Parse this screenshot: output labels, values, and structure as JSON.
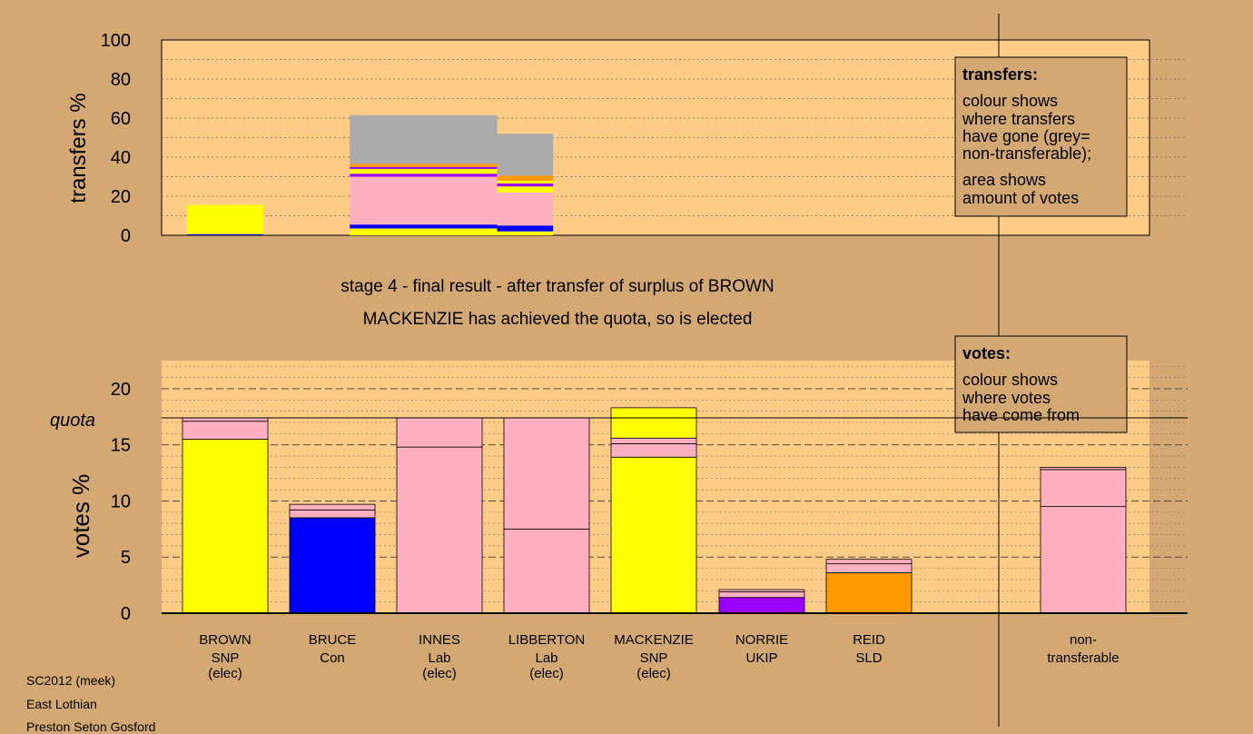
{
  "colors": {
    "background": "#d4a872",
    "panel": "#ffcc88",
    "SNP": "#ffff00",
    "Con": "#0000ff",
    "Lab": "#ffb0c0",
    "UKIP": "#9900ff",
    "SLD": "#ff9900",
    "nontransferable": "#aaaaaa"
  },
  "heading": {
    "line1": "stage 4 - final result - after transfer of surplus of BROWN",
    "line2": "MACKENZIE has achieved the quota, so is elected"
  },
  "legend_transfers": {
    "title": "transfers:",
    "text1": [
      "colour shows",
      "where transfers",
      "have gone (grey=",
      "non-transferable);"
    ],
    "text2": [
      "area shows",
      "amount of votes"
    ]
  },
  "legend_votes": {
    "title": "votes:",
    "text": [
      "colour shows",
      "where votes",
      "have come from"
    ]
  },
  "footer": [
    "SC2012 (meek)",
    "East Lothian",
    "Preston Seton Gosford"
  ],
  "chart_data": [
    {
      "type": "bar",
      "panel": "transfers",
      "ylabel": "transfers %",
      "ylim": [
        0,
        100
      ],
      "yticks": [
        0,
        20,
        40,
        60,
        80,
        100
      ],
      "columns": [
        {
          "x0": 0.25,
          "x1": 1.0,
          "segments": [
            {
              "color": "Con",
              "height": 0.6
            },
            {
              "color": "SNP",
              "height": 15.0
            }
          ]
        },
        {
          "x0": 1.85,
          "x1": 3.3,
          "segments": [
            {
              "color": "SNP",
              "height": 3.5
            },
            {
              "color": "Con",
              "height": 2.0
            },
            {
              "color": "Lab",
              "height": 24.5
            },
            {
              "color": "UKIP",
              "height": 1.5
            },
            {
              "color": "SNP",
              "height": 2.5
            },
            {
              "color": "UKIP",
              "height": 1.0
            },
            {
              "color": "SLD",
              "height": 1.5
            },
            {
              "color": "nontransferable",
              "height": 25.0
            }
          ]
        },
        {
          "x0": 3.3,
          "x1": 3.85,
          "segments": [
            {
              "color": "SNP",
              "height": 2.0
            },
            {
              "color": "Con",
              "height": 3.0
            },
            {
              "color": "Lab",
              "height": 17.0
            },
            {
              "color": "SNP",
              "height": 3.0
            },
            {
              "color": "UKIP",
              "height": 1.5
            },
            {
              "color": "SNP",
              "height": 1.5
            },
            {
              "color": "SLD",
              "height": 2.5
            },
            {
              "color": "nontransferable",
              "height": 21.5
            }
          ]
        }
      ]
    },
    {
      "type": "bar",
      "panel": "votes",
      "ylabel": "votes %",
      "ylim": [
        0,
        22.5
      ],
      "yticks": [
        0,
        5,
        10,
        15,
        20
      ],
      "quota": 17.4,
      "quota_label": "quota",
      "candidates": [
        {
          "name": "BROWN",
          "party": "SNP",
          "status": "(elec)",
          "segments": [
            {
              "color": "SNP",
              "value": 15.5
            },
            {
              "color": "Lab",
              "value": 1.6
            },
            {
              "color": "Lab",
              "value": 0.3
            }
          ]
        },
        {
          "name": "BRUCE",
          "party": "Con",
          "status": "",
          "segments": [
            {
              "color": "Con",
              "value": 8.5
            },
            {
              "color": "Lab",
              "value": 0.7
            },
            {
              "color": "Lab",
              "value": 0.5
            }
          ]
        },
        {
          "name": "INNES",
          "party": "Lab",
          "status": "(elec)",
          "segments": [
            {
              "color": "Lab",
              "value": 14.8
            },
            {
              "color": "Lab",
              "value": 2.6
            }
          ]
        },
        {
          "name": "LIBBERTON",
          "party": "Lab",
          "status": "(elec)",
          "segments": [
            {
              "color": "Lab",
              "value": 7.5
            },
            {
              "color": "Lab",
              "value": 9.9
            }
          ]
        },
        {
          "name": "MACKENZIE",
          "party": "SNP",
          "status": "(elec)",
          "segments": [
            {
              "color": "SNP",
              "value": 13.9
            },
            {
              "color": "Lab",
              "value": 1.2
            },
            {
              "color": "Lab",
              "value": 0.5
            },
            {
              "color": "SNP",
              "value": 2.7
            }
          ]
        },
        {
          "name": "NORRIE",
          "party": "UKIP",
          "status": "",
          "segments": [
            {
              "color": "UKIP",
              "value": 1.4
            },
            {
              "color": "Lab",
              "value": 0.5
            },
            {
              "color": "Lab",
              "value": 0.2
            }
          ]
        },
        {
          "name": "REID",
          "party": "SLD",
          "status": "",
          "segments": [
            {
              "color": "SLD",
              "value": 3.6
            },
            {
              "color": "Lab",
              "value": 0.8
            },
            {
              "color": "Lab",
              "value": 0.4
            }
          ]
        },
        {
          "name": "non-",
          "party": "transferable",
          "status": "",
          "segments": [
            {
              "color": "Lab",
              "value": 9.5
            },
            {
              "color": "Lab",
              "value": 3.3
            },
            {
              "color": "Lab",
              "value": 0.2
            }
          ]
        }
      ]
    }
  ]
}
